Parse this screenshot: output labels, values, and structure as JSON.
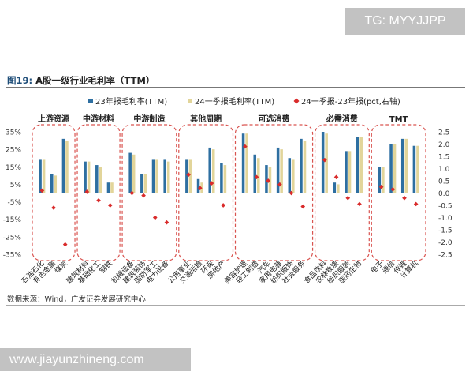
{
  "watermark_top": "TG: MYYJJPP",
  "watermark_bottom": "www.jiayunzhineng.com",
  "figure": {
    "label": "图19:",
    "title": "A股一级行业毛利率（TTM）"
  },
  "source": "数据来源：Wind，广发证券发展研究中心",
  "colors": {
    "series1": "#2e6fa1",
    "series2": "#e2d59a",
    "series3": "#d92b2b",
    "group_border": "#d9534f"
  },
  "chart_data": {
    "type": "bar",
    "series": [
      {
        "name": "23年报毛利率(TTM)",
        "type": "bar",
        "axis": "left",
        "values": [
          19,
          11,
          31,
          18,
          16,
          6,
          23,
          11,
          19,
          19,
          19,
          8,
          26,
          17,
          34,
          22,
          16,
          26,
          20,
          31,
          35,
          6,
          24,
          32,
          15,
          28,
          31,
          27
        ]
      },
      {
        "name": "24一季报毛利率(TTM)",
        "type": "bar",
        "axis": "left",
        "values": [
          19,
          10,
          30,
          18,
          15,
          6,
          22,
          11,
          19,
          18,
          19,
          6,
          25,
          16,
          34,
          20,
          15,
          25,
          19,
          30,
          34,
          5,
          24,
          32,
          15,
          28,
          31,
          27
        ]
      },
      {
        "name": "24一季报-23年报(pct,右轴)",
        "type": "scatter",
        "axis": "right",
        "values": [
          0.1,
          -0.6,
          -2.1,
          0.05,
          -0.3,
          -0.5,
          0.0,
          -0.1,
          -1.0,
          -1.2,
          0.75,
          0.2,
          0.4,
          -0.5,
          1.9,
          0.65,
          0.5,
          0.35,
          0.0,
          -0.55,
          1.35,
          0.65,
          -0.2,
          -0.45,
          0.25,
          0.15,
          -0.2,
          -0.45
        ]
      }
    ],
    "categories": [
      "石油石化",
      "有色金属",
      "煤炭",
      "建筑材料",
      "基础化工",
      "钢铁",
      "机械设备",
      "建筑装饰",
      "国防军工",
      "电力设备",
      "公用事业",
      "交通运输",
      "环保",
      "房地产",
      "美容护理",
      "轻工制造",
      "汽车",
      "家用电器",
      "纺织服饰",
      "社会服务",
      "食品饮料",
      "农林牧渔",
      "纺织服装",
      "医药生物",
      "电子",
      "通信",
      "传媒",
      "计算机"
    ],
    "groups": [
      {
        "name": "上游资源",
        "count": 3
      },
      {
        "name": "中游材料",
        "count": 3
      },
      {
        "name": "中游制造",
        "count": 4
      },
      {
        "name": "其他周期",
        "count": 4
      },
      {
        "name": "可选消费",
        "count": 6
      },
      {
        "name": "必需消费",
        "count": 4
      },
      {
        "name": "TMT",
        "count": 4
      }
    ],
    "left_axis": {
      "ticks": [
        "35%",
        "25%",
        "15%",
        "5%",
        "-5%",
        "-15%",
        "-25%",
        "-35%"
      ],
      "min": -35,
      "max": 35
    },
    "right_axis": {
      "ticks": [
        "2.5",
        "2.0",
        "1.5",
        "1.0",
        "0.5",
        "0.0",
        "-0.5",
        "-1.0",
        "-1.5",
        "-2.0",
        "-2.5"
      ],
      "min": -2.5,
      "max": 2.5
    },
    "legend_position": "top",
    "grid": false
  }
}
